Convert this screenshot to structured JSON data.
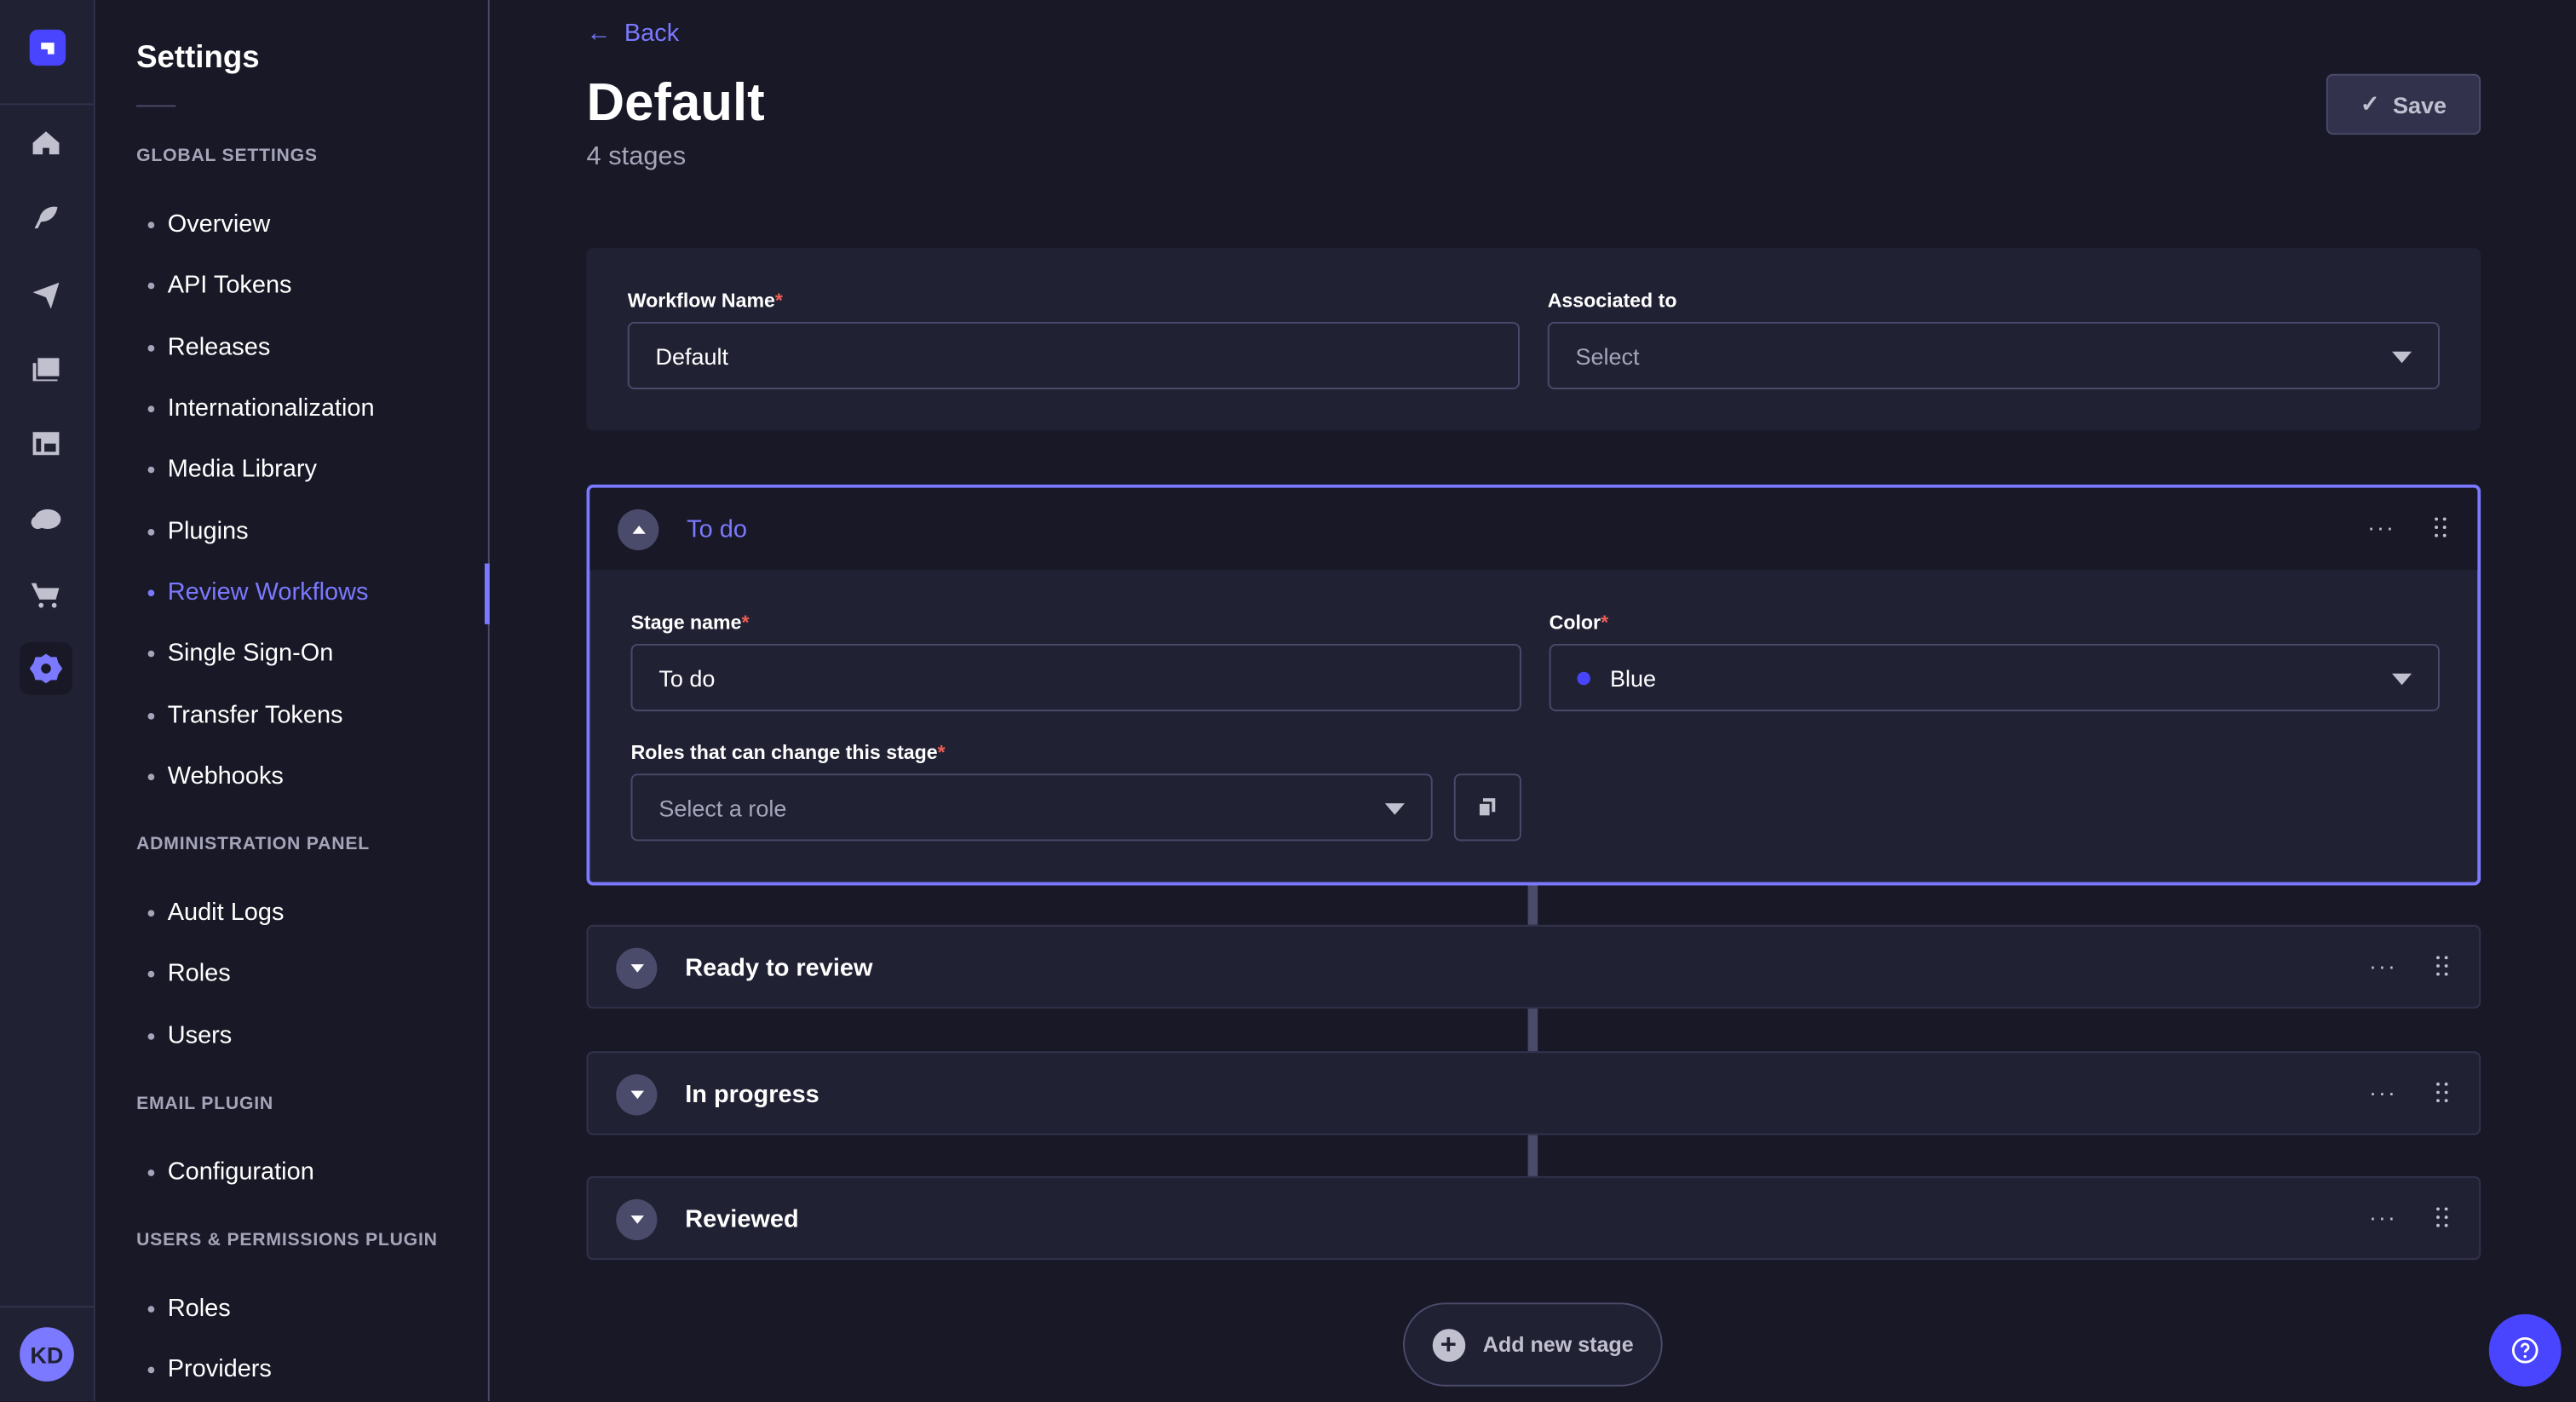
{
  "app": {
    "avatar_initials": "KD",
    "accent": "#4945ff",
    "primary": "#7b79ff"
  },
  "rail": {
    "items": [
      "home-icon",
      "content-manager-icon",
      "releases-icon",
      "media-library-icon",
      "content-type-builder-icon",
      "cloud-icon",
      "marketplace-icon",
      "settings-icon"
    ],
    "active": "settings-icon"
  },
  "settings": {
    "title": "Settings",
    "sections": [
      {
        "label": "GLOBAL SETTINGS",
        "items": [
          "Overview",
          "API Tokens",
          "Releases",
          "Internationalization",
          "Media Library",
          "Plugins",
          "Review Workflows",
          "Single Sign-On",
          "Transfer Tokens",
          "Webhooks"
        ]
      },
      {
        "label": "ADMINISTRATION PANEL",
        "items": [
          "Audit Logs",
          "Roles",
          "Users"
        ]
      },
      {
        "label": "EMAIL PLUGIN",
        "items": [
          "Configuration"
        ]
      },
      {
        "label": "USERS & PERMISSIONS PLUGIN",
        "items": [
          "Roles",
          "Providers"
        ]
      }
    ],
    "active_item": "Review Workflows"
  },
  "header": {
    "back": "Back",
    "title": "Default",
    "subtitle": "4 stages",
    "save": "Save"
  },
  "workflow": {
    "name_label": "Workflow Name",
    "name_value": "Default",
    "assoc_label": "Associated to",
    "assoc_placeholder": "Select"
  },
  "stages": [
    {
      "name": "To do",
      "expanded": true,
      "stage_name_label": "Stage name",
      "stage_name_value": "To do",
      "color_label": "Color",
      "color_value": "Blue",
      "color_hex": "#4945ff",
      "roles_label": "Roles that can change this stage",
      "roles_placeholder": "Select a role"
    },
    {
      "name": "Ready to review",
      "expanded": false
    },
    {
      "name": "In progress",
      "expanded": false
    },
    {
      "name": "Reviewed",
      "expanded": false
    }
  ],
  "add_stage": "Add new stage",
  "more_glyph": "···"
}
